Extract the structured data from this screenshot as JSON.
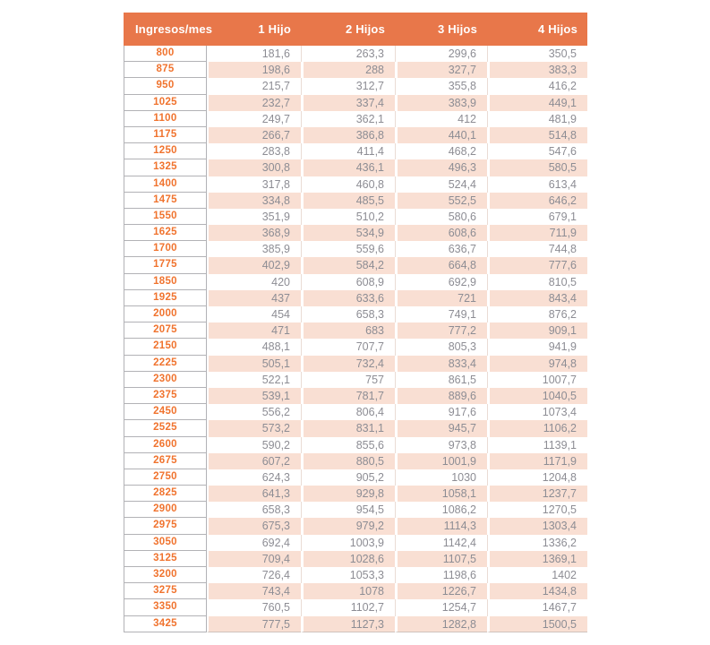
{
  "chart_data": {
    "type": "table",
    "columns": [
      "Ingresos/mes",
      "1 Hijo",
      "2 Hijos",
      "3 Hijos",
      "4 Hijos"
    ],
    "rows": [
      [
        "800",
        "181,6",
        "263,3",
        "299,6",
        "350,5"
      ],
      [
        "875",
        "198,6",
        "288",
        "327,7",
        "383,3"
      ],
      [
        "950",
        "215,7",
        "312,7",
        "355,8",
        "416,2"
      ],
      [
        "1025",
        "232,7",
        "337,4",
        "383,9",
        "449,1"
      ],
      [
        "1100",
        "249,7",
        "362,1",
        "412",
        "481,9"
      ],
      [
        "1175",
        "266,7",
        "386,8",
        "440,1",
        "514,8"
      ],
      [
        "1250",
        "283,8",
        "411,4",
        "468,2",
        "547,6"
      ],
      [
        "1325",
        "300,8",
        "436,1",
        "496,3",
        "580,5"
      ],
      [
        "1400",
        "317,8",
        "460,8",
        "524,4",
        "613,4"
      ],
      [
        "1475",
        "334,8",
        "485,5",
        "552,5",
        "646,2"
      ],
      [
        "1550",
        "351,9",
        "510,2",
        "580,6",
        "679,1"
      ],
      [
        "1625",
        "368,9",
        "534,9",
        "608,6",
        "711,9"
      ],
      [
        "1700",
        "385,9",
        "559,6",
        "636,7",
        "744,8"
      ],
      [
        "1775",
        "402,9",
        "584,2",
        "664,8",
        "777,6"
      ],
      [
        "1850",
        "420",
        "608,9",
        "692,9",
        "810,5"
      ],
      [
        "1925",
        "437",
        "633,6",
        "721",
        "843,4"
      ],
      [
        "2000",
        "454",
        "658,3",
        "749,1",
        "876,2"
      ],
      [
        "2075",
        "471",
        "683",
        "777,2",
        "909,1"
      ],
      [
        "2150",
        "488,1",
        "707,7",
        "805,3",
        "941,9"
      ],
      [
        "2225",
        "505,1",
        "732,4",
        "833,4",
        "974,8"
      ],
      [
        "2300",
        "522,1",
        "757",
        "861,5",
        "1007,7"
      ],
      [
        "2375",
        "539,1",
        "781,7",
        "889,6",
        "1040,5"
      ],
      [
        "2450",
        "556,2",
        "806,4",
        "917,6",
        "1073,4"
      ],
      [
        "2525",
        "573,2",
        "831,1",
        "945,7",
        "1106,2"
      ],
      [
        "2600",
        "590,2",
        "855,6",
        "973,8",
        "1139,1"
      ],
      [
        "2675",
        "607,2",
        "880,5",
        "1001,9",
        "1171,9"
      ],
      [
        "2750",
        "624,3",
        "905,2",
        "1030",
        "1204,8"
      ],
      [
        "2825",
        "641,3",
        "929,8",
        "1058,1",
        "1237,7"
      ],
      [
        "2900",
        "658,3",
        "954,5",
        "1086,2",
        "1270,5"
      ],
      [
        "2975",
        "675,3",
        "979,2",
        "1114,3",
        "1303,4"
      ],
      [
        "3050",
        "692,4",
        "1003,9",
        "1142,4",
        "1336,2"
      ],
      [
        "3125",
        "709,4",
        "1028,6",
        "1107,5",
        "1369,1"
      ],
      [
        "3200",
        "726,4",
        "1053,3",
        "1198,6",
        "1402"
      ],
      [
        "3275",
        "743,4",
        "1078",
        "1226,7",
        "1434,8"
      ],
      [
        "3350",
        "760,5",
        "1102,7",
        "1254,7",
        "1467,7"
      ],
      [
        "3425",
        "777,5",
        "1127,3",
        "1282,8",
        "1500,5"
      ]
    ],
    "layout_hints": {
      "row_alternation": "white then peach, starting white at row 800",
      "grid": "gray rules only around first column; white gaps between data cells on peach rows"
    },
    "colors": {
      "header_bg": "#E8774A",
      "header_text": "#FFFFFF",
      "income_text": "#F0732E",
      "value_text": "#8D8D94",
      "row_tint_bg": "#F9DFD3",
      "row_plain_bg": "#FFFFFF",
      "grid_line": "#B2B2B6"
    }
  }
}
